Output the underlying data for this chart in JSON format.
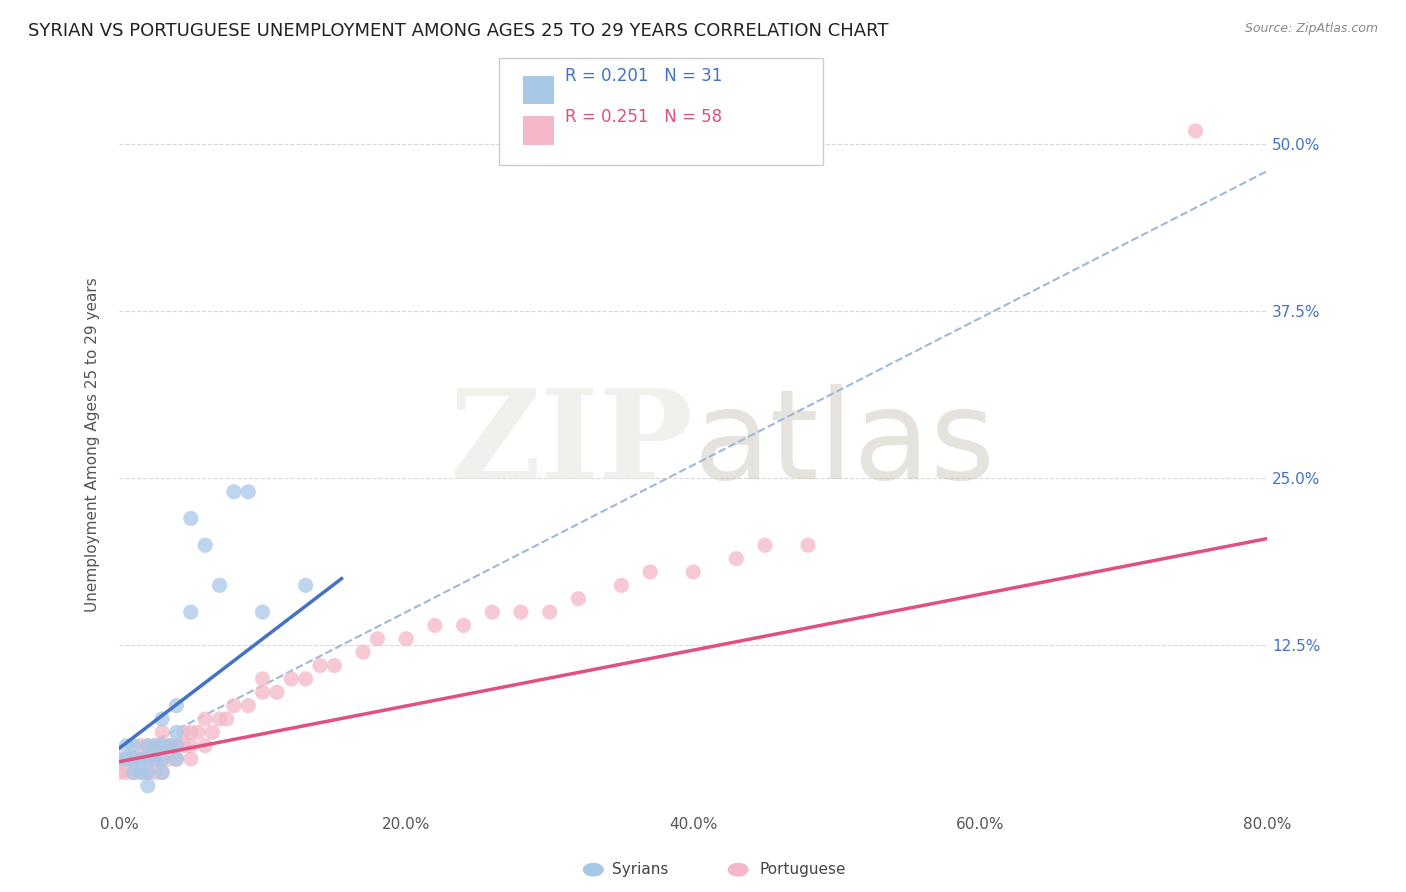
{
  "title": "SYRIAN VS PORTUGUESE UNEMPLOYMENT AMONG AGES 25 TO 29 YEARS CORRELATION CHART",
  "source": "Source: ZipAtlas.com",
  "ylabel": "Unemployment Among Ages 25 to 29 years",
  "xlim": [
    0.0,
    0.8
  ],
  "ylim": [
    0.0,
    0.55
  ],
  "xticks": [
    0.0,
    0.2,
    0.4,
    0.6,
    0.8
  ],
  "xtick_labels": [
    "0.0%",
    "20.0%",
    "40.0%",
    "60.0%",
    "80.0%"
  ],
  "yticks": [
    0.0,
    0.125,
    0.25,
    0.375,
    0.5
  ],
  "ytick_labels": [
    "",
    "12.5%",
    "25.0%",
    "37.5%",
    "50.0%"
  ],
  "background_color": "#ffffff",
  "legend_R_syrian": "R = 0.201",
  "legend_N_syrian": "N = 31",
  "legend_R_portuguese": "R = 0.251",
  "legend_N_portuguese": "N = 58",
  "syrian_color": "#a8c8e8",
  "portuguese_color": "#f4b8c8",
  "syrian_line_color": "#4472c4",
  "portuguese_line_color": "#e05080",
  "dashed_line_color": "#a0b8d8",
  "grid_color": "#d8d8d8",
  "title_fontsize": 13,
  "axis_label_fontsize": 11,
  "tick_fontsize": 11,
  "syrian_scatter_x": [
    0.0,
    0.005,
    0.005,
    0.01,
    0.01,
    0.01,
    0.015,
    0.015,
    0.02,
    0.02,
    0.02,
    0.02,
    0.025,
    0.025,
    0.03,
    0.03,
    0.03,
    0.03,
    0.035,
    0.04,
    0.04,
    0.04,
    0.04,
    0.05,
    0.05,
    0.06,
    0.07,
    0.08,
    0.09,
    0.1,
    0.13
  ],
  "syrian_scatter_y": [
    0.04,
    0.04,
    0.05,
    0.03,
    0.04,
    0.05,
    0.03,
    0.04,
    0.02,
    0.03,
    0.04,
    0.05,
    0.04,
    0.05,
    0.03,
    0.04,
    0.05,
    0.07,
    0.05,
    0.04,
    0.05,
    0.06,
    0.08,
    0.15,
    0.22,
    0.2,
    0.17,
    0.24,
    0.24,
    0.15,
    0.17
  ],
  "portuguese_scatter_x": [
    0.0,
    0.005,
    0.005,
    0.01,
    0.01,
    0.015,
    0.015,
    0.015,
    0.02,
    0.02,
    0.02,
    0.025,
    0.025,
    0.025,
    0.03,
    0.03,
    0.03,
    0.03,
    0.035,
    0.035,
    0.04,
    0.04,
    0.045,
    0.045,
    0.05,
    0.05,
    0.05,
    0.055,
    0.06,
    0.06,
    0.065,
    0.07,
    0.075,
    0.08,
    0.09,
    0.1,
    0.1,
    0.11,
    0.12,
    0.13,
    0.14,
    0.15,
    0.17,
    0.18,
    0.2,
    0.22,
    0.24,
    0.26,
    0.28,
    0.3,
    0.32,
    0.35,
    0.37,
    0.4,
    0.43,
    0.45,
    0.48,
    0.75
  ],
  "portuguese_scatter_y": [
    0.03,
    0.03,
    0.04,
    0.03,
    0.04,
    0.03,
    0.04,
    0.05,
    0.03,
    0.04,
    0.05,
    0.03,
    0.04,
    0.05,
    0.03,
    0.04,
    0.05,
    0.06,
    0.04,
    0.05,
    0.04,
    0.05,
    0.05,
    0.06,
    0.04,
    0.05,
    0.06,
    0.06,
    0.05,
    0.07,
    0.06,
    0.07,
    0.07,
    0.08,
    0.08,
    0.09,
    0.1,
    0.09,
    0.1,
    0.1,
    0.11,
    0.11,
    0.12,
    0.13,
    0.13,
    0.14,
    0.14,
    0.15,
    0.15,
    0.15,
    0.16,
    0.17,
    0.18,
    0.18,
    0.19,
    0.2,
    0.2,
    0.51
  ],
  "syrian_line_x0": 0.0,
  "syrian_line_y0": 0.048,
  "syrian_line_x1": 0.155,
  "syrian_line_y1": 0.175,
  "portuguese_line_x0": 0.0,
  "portuguese_line_y0": 0.038,
  "portuguese_line_x1": 0.8,
  "portuguese_line_y1": 0.205,
  "dashed_line_x0": 0.0,
  "dashed_line_y0": 0.04,
  "dashed_line_x1": 0.8,
  "dashed_line_y1": 0.48
}
